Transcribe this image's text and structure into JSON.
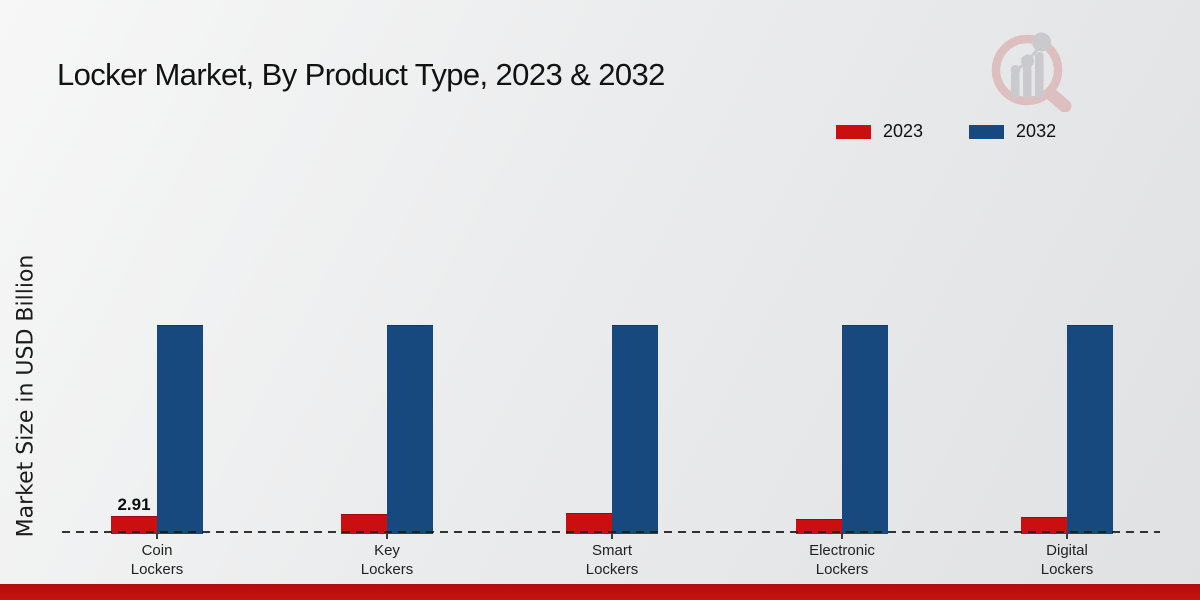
{
  "header": {
    "title": "Locker Market, By Product Type, 2023 & 2032"
  },
  "y_axis": {
    "label": "Market Size in USD Billion"
  },
  "colors": {
    "series_2023": "#cb0e10",
    "series_2032": "#17497f",
    "footer_bar": "#bd0d0d",
    "baseline": "#1a1a1a",
    "background": "#ebeced"
  },
  "chart_data": {
    "type": "bar",
    "title": "Locker Market, By Product Type, 2023 & 2032",
    "xlabel": "",
    "ylabel": "Market Size in USD Billion",
    "categories": [
      "Coin Lockers",
      "Key Lockers",
      "Smart Lockers",
      "Electronic Lockers",
      "Digital Lockers"
    ],
    "series": [
      {
        "name": "2023",
        "color": "#cb0e10",
        "values": [
          2.91,
          3.2,
          3.35,
          2.4,
          2.75
        ]
      },
      {
        "name": "2032",
        "color": "#17497f",
        "values": [
          35.6,
          35.6,
          35.6,
          35.6,
          35.6
        ]
      }
    ],
    "annotations": [
      {
        "series": "2023",
        "category": "Coin Lockers",
        "text": "2.91"
      }
    ],
    "ylim": [
      0,
      40
    ],
    "grid": false,
    "legend_position": "top-right",
    "baseline_style": "dashed"
  }
}
